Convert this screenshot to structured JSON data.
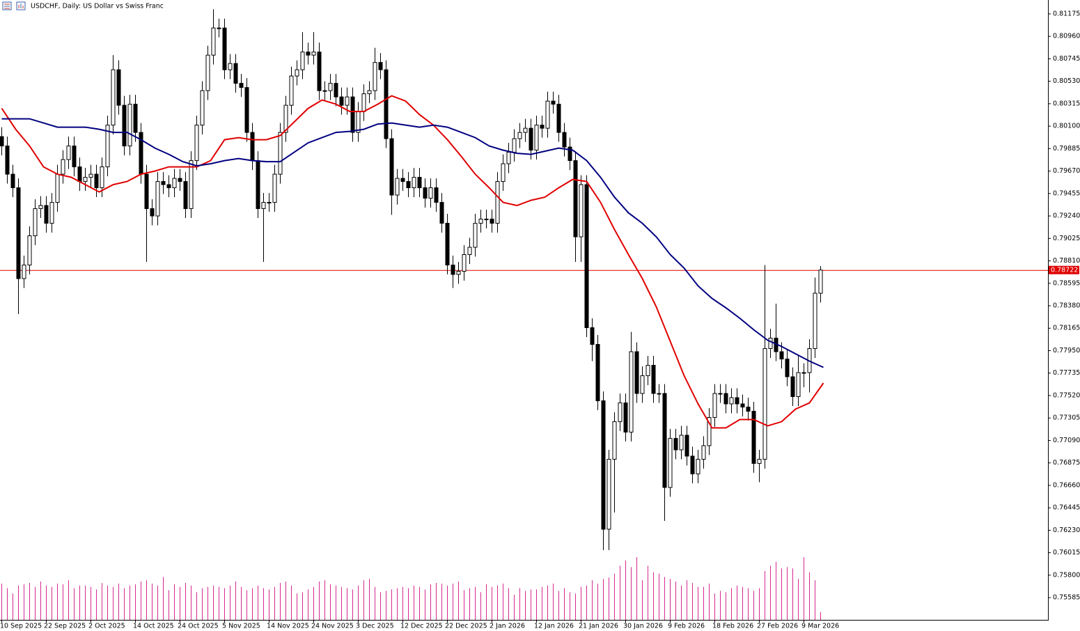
{
  "chart_data": {
    "type": "candlestick",
    "title": "USDCHF, Daily:  US Dollar vs Swiss Franc",
    "categories": [
      "10 Sep 2025",
      null,
      null,
      null,
      null,
      null,
      null,
      null,
      "22 Sep 2025",
      null,
      null,
      null,
      null,
      null,
      null,
      null,
      "2 Oct 2025",
      null,
      null,
      null,
      null,
      null,
      null,
      null,
      "14 Oct 2025",
      null,
      null,
      null,
      null,
      null,
      null,
      null,
      "24 Oct 2025",
      null,
      null,
      null,
      null,
      null,
      null,
      null,
      "5 Nov 2025",
      null,
      null,
      null,
      null,
      null,
      null,
      null,
      "14 Nov 2025",
      null,
      null,
      null,
      null,
      null,
      null,
      null,
      "24 Nov 2025",
      null,
      null,
      null,
      null,
      null,
      null,
      null,
      "3 Dec 2025",
      null,
      null,
      null,
      null,
      null,
      null,
      null,
      "12 Dec 2025",
      null,
      null,
      null,
      null,
      null,
      null,
      null,
      "22 Dec 2025",
      null,
      null,
      null,
      null,
      null,
      null,
      null,
      "2 Jan 2026",
      null,
      null,
      null,
      null,
      null,
      null,
      null,
      "12 Jan 2026",
      null,
      null,
      null,
      null,
      null,
      null,
      null,
      "21 Jan 2026",
      null,
      null,
      null,
      null,
      null,
      null,
      null,
      "30 Jan 2026",
      null,
      null,
      null,
      null,
      null,
      null,
      null,
      "9 Feb 2026",
      null,
      null,
      null,
      null,
      null,
      null,
      null,
      "18 Feb 2026",
      null,
      null,
      null,
      null,
      null,
      null,
      null,
      "27 Feb 2026",
      null,
      null,
      null,
      null,
      null,
      null,
      null,
      "9 Mar 2026",
      null,
      null,
      null
    ],
    "open": [
      0.8,
      0.7991,
      0.7964,
      0.7951,
      0.7864,
      0.7877,
      0.7905,
      0.7931,
      0.7934,
      0.7917,
      0.7937,
      0.7964,
      0.7978,
      0.7991,
      0.7971,
      0.7957,
      0.7961,
      0.7964,
      0.7951,
      0.7971,
      0.8011,
      0.8064,
      0.803,
      0.7991,
      0.8031,
      0.8004,
      0.7964,
      0.7931,
      0.7924,
      0.7957,
      0.7954,
      0.7951,
      0.796,
      0.7957,
      0.7931,
      0.7977,
      0.8011,
      0.8044,
      0.8078,
      0.8104,
      0.8104,
      0.8064,
      0.807,
      0.8051,
      0.8047,
      0.8004,
      0.7977,
      0.7931,
      0.7937,
      0.7937,
      0.7964,
      0.8004,
      0.803,
      0.8058,
      0.8064,
      0.8081,
      0.8078,
      0.8081,
      0.8044,
      0.8044,
      0.8051,
      0.8038,
      0.803,
      0.8038,
      0.8004,
      0.8024,
      0.8041,
      0.8044,
      0.8071,
      0.8064,
      0.7998,
      0.7944,
      0.796,
      0.7957,
      0.7951,
      0.7961,
      0.7951,
      0.7941,
      0.7951,
      0.7937,
      0.7917,
      0.7877,
      0.7868,
      0.7871,
      0.7887,
      0.7894,
      0.7917,
      0.7921,
      0.7921,
      0.7917,
      0.7957,
      0.7974,
      0.7985,
      0.7998,
      0.8004,
      0.8008,
      0.7987,
      0.8011,
      0.8008,
      0.8034,
      0.8031,
      0.8004,
      0.799,
      0.7977,
      0.7904,
      0.7954,
      0.7817,
      0.7801,
      0.7747,
      0.7624,
      0.7691,
      0.7727,
      0.7745,
      0.7717,
      0.7794,
      0.7754,
      0.7771,
      0.7781,
      0.7754,
      0.7754,
      0.7664,
      0.7711,
      0.77,
      0.7714,
      0.7694,
      0.7677,
      0.7691,
      0.7704,
      0.7731,
      0.7754,
      0.7754,
      0.7744,
      0.775,
      0.7744,
      0.7741,
      0.7737,
      0.7687,
      0.7691,
      0.7797,
      0.7807,
      0.7794,
      0.7787,
      0.777,
      0.7751,
      0.7774,
      0.7774,
      0.7797,
      0.785
    ],
    "high": [
      0.8009,
      0.8,
      0.7973,
      0.796,
      0.7886,
      0.7914,
      0.794,
      0.7943,
      0.7943,
      0.7946,
      0.7973,
      0.7987,
      0.8,
      0.8,
      0.798,
      0.797,
      0.7973,
      0.7973,
      0.798,
      0.802,
      0.8078,
      0.8073,
      0.8039,
      0.804,
      0.804,
      0.8013,
      0.7973,
      0.794,
      0.7966,
      0.7966,
      0.7963,
      0.7969,
      0.7969,
      0.7966,
      0.7986,
      0.802,
      0.8053,
      0.8087,
      0.8122,
      0.8113,
      0.8113,
      0.8079,
      0.8079,
      0.806,
      0.8056,
      0.8013,
      0.7986,
      0.7946,
      0.7946,
      0.7973,
      0.8013,
      0.8039,
      0.8067,
      0.8073,
      0.81,
      0.809,
      0.81,
      0.809,
      0.8053,
      0.806,
      0.806,
      0.8047,
      0.8047,
      0.8047,
      0.8033,
      0.805,
      0.8053,
      0.8085,
      0.808,
      0.8073,
      0.8007,
      0.7969,
      0.7969,
      0.7966,
      0.797,
      0.797,
      0.796,
      0.796,
      0.796,
      0.7946,
      0.7926,
      0.7886,
      0.788,
      0.7896,
      0.7903,
      0.7926,
      0.793,
      0.793,
      0.793,
      0.7966,
      0.7983,
      0.7994,
      0.8007,
      0.8013,
      0.8017,
      0.8017,
      0.802,
      0.802,
      0.8043,
      0.8043,
      0.804,
      0.8013,
      0.7999,
      0.7986,
      0.7963,
      0.7963,
      0.7826,
      0.781,
      0.7756,
      0.77,
      0.7736,
      0.7754,
      0.7754,
      0.7813,
      0.7803,
      0.778,
      0.779,
      0.779,
      0.7763,
      0.7763,
      0.772,
      0.772,
      0.7723,
      0.7723,
      0.7703,
      0.77,
      0.7713,
      0.774,
      0.7763,
      0.7763,
      0.7763,
      0.7759,
      0.7759,
      0.7753,
      0.775,
      0.7746,
      0.77,
      0.7877,
      0.7816,
      0.784,
      0.7803,
      0.7796,
      0.7779,
      0.779,
      0.7783,
      0.7806,
      0.7865,
      0.7876
    ],
    "low": [
      0.7982,
      0.7955,
      0.7942,
      0.783,
      0.7855,
      0.7868,
      0.7896,
      0.7922,
      0.7908,
      0.7908,
      0.7928,
      0.7955,
      0.7969,
      0.7962,
      0.7948,
      0.7948,
      0.7952,
      0.7942,
      0.7942,
      0.7962,
      0.8002,
      0.8021,
      0.7982,
      0.7982,
      0.7995,
      0.7955,
      0.788,
      0.7915,
      0.7915,
      0.7945,
      0.7942,
      0.7942,
      0.7948,
      0.7922,
      0.7922,
      0.7968,
      0.8002,
      0.8035,
      0.8069,
      0.8095,
      0.8055,
      0.8055,
      0.8042,
      0.8038,
      0.7995,
      0.7968,
      0.7922,
      0.788,
      0.7928,
      0.7928,
      0.7955,
      0.7995,
      0.8021,
      0.8049,
      0.8055,
      0.8069,
      0.8069,
      0.8035,
      0.8035,
      0.8035,
      0.8029,
      0.8021,
      0.8021,
      0.7995,
      0.7995,
      0.8015,
      0.8032,
      0.8035,
      0.8055,
      0.7989,
      0.7925,
      0.7935,
      0.7948,
      0.7942,
      0.7942,
      0.7942,
      0.7932,
      0.7932,
      0.7928,
      0.7908,
      0.7868,
      0.7855,
      0.7859,
      0.7862,
      0.7878,
      0.7885,
      0.7908,
      0.7912,
      0.7908,
      0.7908,
      0.7948,
      0.7965,
      0.7976,
      0.7989,
      0.7995,
      0.7978,
      0.7978,
      0.7999,
      0.7999,
      0.8022,
      0.7995,
      0.7981,
      0.7968,
      0.788,
      0.788,
      0.7808,
      0.7785,
      0.7738,
      0.7604,
      0.7604,
      0.764,
      0.7718,
      0.7708,
      0.7708,
      0.7745,
      0.7745,
      0.7762,
      0.7745,
      0.7745,
      0.7632,
      0.7655,
      0.7691,
      0.7691,
      0.7685,
      0.7668,
      0.7668,
      0.7682,
      0.7695,
      0.7722,
      0.7745,
      0.7735,
      0.7735,
      0.7735,
      0.7732,
      0.7728,
      0.7678,
      0.7669,
      0.7682,
      0.7788,
      0.7785,
      0.7778,
      0.7761,
      0.7742,
      0.7742,
      0.776,
      0.7755,
      0.7788,
      0.7841
    ],
    "close": [
      0.7991,
      0.7964,
      0.7951,
      0.7864,
      0.7877,
      0.7905,
      0.7931,
      0.7934,
      0.7917,
      0.7937,
      0.7964,
      0.7978,
      0.7991,
      0.7971,
      0.7957,
      0.7961,
      0.7964,
      0.7951,
      0.7971,
      0.8011,
      0.8064,
      0.803,
      0.7991,
      0.8031,
      0.8004,
      0.7964,
      0.7931,
      0.7924,
      0.7957,
      0.7954,
      0.7951,
      0.796,
      0.7957,
      0.7931,
      0.7977,
      0.8011,
      0.8044,
      0.8078,
      0.8104,
      0.8104,
      0.8064,
      0.807,
      0.8051,
      0.8047,
      0.8004,
      0.7977,
      0.7931,
      0.7937,
      0.7937,
      0.7964,
      0.8004,
      0.803,
      0.8058,
      0.8064,
      0.8081,
      0.8078,
      0.8081,
      0.8044,
      0.8044,
      0.8051,
      0.8038,
      0.803,
      0.8038,
      0.8004,
      0.8024,
      0.8041,
      0.8044,
      0.8071,
      0.8064,
      0.7998,
      0.7944,
      0.796,
      0.7957,
      0.7951,
      0.7961,
      0.7951,
      0.7941,
      0.7951,
      0.7937,
      0.7917,
      0.7877,
      0.7868,
      0.7871,
      0.7887,
      0.7894,
      0.7917,
      0.7921,
      0.7921,
      0.7917,
      0.7957,
      0.7974,
      0.7985,
      0.7998,
      0.8004,
      0.8008,
      0.7987,
      0.8011,
      0.8008,
      0.8034,
      0.8031,
      0.8004,
      0.799,
      0.7977,
      0.7904,
      0.7954,
      0.7817,
      0.7801,
      0.7747,
      0.7624,
      0.7691,
      0.7727,
      0.7745,
      0.7717,
      0.7794,
      0.7754,
      0.7771,
      0.7781,
      0.7754,
      0.7754,
      0.7664,
      0.7711,
      0.77,
      0.7714,
      0.7694,
      0.7677,
      0.7691,
      0.7704,
      0.7731,
      0.7754,
      0.7754,
      0.7744,
      0.775,
      0.7744,
      0.7741,
      0.7737,
      0.7687,
      0.7691,
      0.7797,
      0.7807,
      0.7794,
      0.7787,
      0.777,
      0.7751,
      0.7774,
      0.7774,
      0.7797,
      0.785,
      0.78722
    ],
    "volume": [
      55,
      48,
      40,
      52,
      54,
      56,
      50,
      58,
      52,
      50,
      55,
      54,
      60,
      48,
      52,
      52,
      50,
      46,
      56,
      52,
      50,
      55,
      48,
      52,
      54,
      58,
      60,
      55,
      52,
      65,
      45,
      54,
      50,
      56,
      52,
      42,
      48,
      50,
      52,
      50,
      48,
      52,
      58,
      50,
      45,
      48,
      52,
      48,
      46,
      50,
      56,
      58,
      52,
      40,
      42,
      46,
      50,
      58,
      60,
      54,
      52,
      50,
      48,
      46,
      52,
      60,
      62,
      50,
      42,
      44,
      46,
      48,
      50,
      48,
      52,
      50,
      46,
      54,
      56,
      55,
      52,
      55,
      58,
      45,
      48,
      50,
      42,
      54,
      50,
      52,
      55,
      48,
      38,
      48,
      44,
      46,
      46,
      50,
      52,
      55,
      44,
      48,
      42,
      40,
      50,
      52,
      60,
      55,
      62,
      64,
      70,
      82,
      90,
      80,
      95,
      60,
      82,
      72,
      70,
      65,
      62,
      58,
      52,
      60,
      56,
      50,
      50,
      55,
      40,
      44,
      42,
      48,
      52,
      50,
      48,
      44,
      48,
      74,
      82,
      88,
      78,
      80,
      78,
      62,
      95,
      72,
      60,
      12
    ],
    "volume_color": "#d6278f",
    "bull_color": "#ffffff",
    "bear_color": "#000000",
    "outline_color": "#000000",
    "moving_averages": [
      {
        "color": "#e00000",
        "x": [
          0,
          2.5,
          5,
          7.5,
          10,
          12.5,
          15,
          17.5,
          20,
          22.5,
          25,
          27.5,
          30,
          32.5,
          35,
          37.5,
          40,
          42.5,
          45,
          47.5,
          50,
          52.5,
          55,
          57.5,
          60,
          62.5,
          65,
          67.5,
          70,
          72.5,
          75,
          77.5,
          80,
          82.5,
          85,
          87.5,
          90,
          92.5,
          95,
          97.5,
          100,
          102.5,
          105,
          107.5,
          110,
          112.5,
          115,
          117.5,
          120,
          122.5,
          125,
          127.5,
          130,
          132.5,
          135,
          137.5,
          140,
          142.5,
          145,
          147.5
        ],
        "values": [
          0.8027,
          0.8007,
          0.7991,
          0.7971,
          0.7964,
          0.7961,
          0.7954,
          0.7947,
          0.7954,
          0.7957,
          0.7964,
          0.7967,
          0.7971,
          0.7971,
          0.7971,
          0.7977,
          0.7997,
          0.7999,
          0.7997,
          0.7997,
          0.8001,
          0.8014,
          0.8027,
          0.8035,
          0.8031,
          0.8024,
          0.8024,
          0.8031,
          0.8039,
          0.8034,
          0.8021,
          0.8011,
          0.7997,
          0.7981,
          0.7964,
          0.7951,
          0.7937,
          0.7934,
          0.7939,
          0.7942,
          0.7951,
          0.7959,
          0.7957,
          0.7937,
          0.7911,
          0.7887,
          0.7864,
          0.7837,
          0.7804,
          0.7771,
          0.7744,
          0.7721,
          0.7721,
          0.7729,
          0.7729,
          0.7723,
          0.7727,
          0.7739,
          0.7745,
          0.7764
        ]
      },
      {
        "color": "#000080",
        "x": [
          0,
          2.5,
          5,
          7.5,
          10,
          12.5,
          15,
          17.5,
          20,
          22.5,
          25,
          27.5,
          30,
          32.5,
          35,
          37.5,
          40,
          42.5,
          45,
          47.5,
          50,
          52.5,
          55,
          57.5,
          60,
          62.5,
          65,
          67.5,
          70,
          72.5,
          75,
          77.5,
          80,
          82.5,
          85,
          87.5,
          90,
          92.5,
          95,
          97.5,
          100,
          102.5,
          105,
          107.5,
          110,
          112.5,
          115,
          117.5,
          120,
          122.5,
          125,
          127.5,
          130,
          132.5,
          135,
          137.5,
          140,
          142.5,
          145,
          147.5
        ],
        "values": [
          0.8017,
          0.8017,
          0.8017,
          0.8013,
          0.8009,
          0.8009,
          0.8009,
          0.8007,
          0.8004,
          0.8004,
          0.7997,
          0.7989,
          0.7983,
          0.7976,
          0.7972,
          0.7974,
          0.7977,
          0.7979,
          0.7977,
          0.7976,
          0.7976,
          0.7985,
          0.7994,
          0.7999,
          0.8004,
          0.8005,
          0.8007,
          0.8012,
          0.8013,
          0.8011,
          0.8009,
          0.8011,
          0.8009,
          0.8004,
          0.7999,
          0.7991,
          0.7987,
          0.7984,
          0.7983,
          0.7986,
          0.7989,
          0.7987,
          0.7977,
          0.7961,
          0.7942,
          0.7927,
          0.7917,
          0.7904,
          0.7887,
          0.7874,
          0.7857,
          0.7845,
          0.7836,
          0.7826,
          0.7815,
          0.7805,
          0.7799,
          0.7792,
          0.7785,
          0.7779
        ]
      }
    ],
    "current_price": 0.78722,
    "current_price_color": "#e00000",
    "ylim": [
      0.75372,
      0.81308
    ],
    "yticks": [
      0.81175,
      {
        "value": 0.8096,
        "label": "0.80960"
      },
      0.80745,
      {
        "value": 0.8053,
        "label": "0.80530"
      },
      0.80315,
      {
        "value": 0.801,
        "label": "0.80100"
      },
      0.79885,
      {
        "value": 0.7967,
        "label": "0.79670"
      },
      0.79455,
      {
        "value": 0.7924,
        "label": "0.79240"
      },
      0.79025,
      {
        "value": 0.7881,
        "label": "0.78810"
      },
      0.78595,
      {
        "value": 0.7838,
        "label": "0.78380"
      },
      0.78165,
      {
        "value": 0.7795,
        "label": "0.77950"
      },
      0.77735,
      {
        "value": 0.7752,
        "label": "0.77520"
      },
      0.77305,
      {
        "value": 0.7709,
        "label": "0.77090"
      },
      0.76875,
      {
        "value": 0.7666,
        "label": "0.76660"
      },
      0.76445,
      {
        "value": 0.7623,
        "label": "0.76230"
      },
      0.76015,
      {
        "value": 0.758,
        "label": "0.75800"
      },
      0.75585
    ]
  }
}
